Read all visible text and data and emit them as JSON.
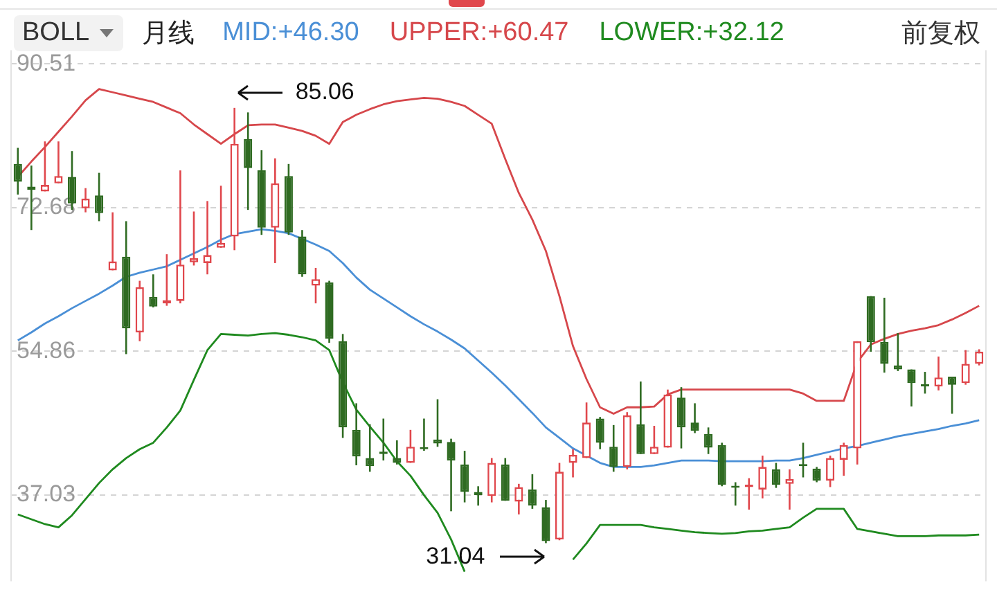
{
  "chart_data": {
    "type": "candlestick",
    "title": "BOLL",
    "subtitle": "月线",
    "categories": [
      null,
      null,
      null,
      null,
      null,
      null,
      null,
      null,
      null,
      null,
      null,
      null,
      null,
      null,
      null,
      null,
      null,
      null,
      null,
      null,
      null,
      null,
      null,
      null,
      null,
      null,
      null,
      null,
      null,
      null,
      null,
      null,
      null,
      null,
      null,
      null,
      null,
      null,
      null,
      null,
      null,
      null,
      null,
      null,
      null,
      null,
      null,
      null,
      null,
      null,
      null,
      null,
      null,
      null,
      null,
      null,
      null,
      null,
      null,
      null,
      null,
      null,
      null,
      null,
      null,
      null,
      null,
      null,
      null,
      null,
      null,
      null
    ],
    "ohlc": [
      [
        78.1,
        80.1,
        74.3,
        75.9
      ],
      [
        75.3,
        77.9,
        69.9,
        74.9
      ],
      [
        74.7,
        80.9,
        74.7,
        75.5
      ],
      [
        75.7,
        80.9,
        75.7,
        76.6
      ],
      [
        76.5,
        79.7,
        72.4,
        73.2
      ],
      [
        72.6,
        75.1,
        72.1,
        73.8
      ],
      [
        74.2,
        77.0,
        71.0,
        72.0
      ],
      [
        64.9,
        72.1,
        64.9,
        66.0
      ],
      [
        66.6,
        71.0,
        54.5,
        57.7
      ],
      [
        57.2,
        63.6,
        56.1,
        62.8
      ],
      [
        61.6,
        64.4,
        60.3,
        60.4
      ],
      [
        60.8,
        66.9,
        60.5,
        61.2
      ],
      [
        61.1,
        77.3,
        60.8,
        65.6
      ],
      [
        65.9,
        72.2,
        65.5,
        66.4
      ],
      [
        65.8,
        73.5,
        64.4,
        66.8
      ],
      [
        67.7,
        75.4,
        67.7,
        68.3
      ],
      [
        69.1,
        85.06,
        67.4,
        80.6
      ],
      [
        81.2,
        84.5,
        72.4,
        77.6
      ],
      [
        77.3,
        79.8,
        69.3,
        70.2
      ],
      [
        70.2,
        78.8,
        65.8,
        75.7
      ],
      [
        76.6,
        78.1,
        69.3,
        69.6
      ],
      [
        69.1,
        69.9,
        64.1,
        64.4
      ],
      [
        63.0,
        65.2,
        60.8,
        63.8
      ],
      [
        63.4,
        63.6,
        55.9,
        56.4
      ],
      [
        56.1,
        57.0,
        44.1,
        45.4
      ],
      [
        45.1,
        48.4,
        40.7,
        41.8
      ],
      [
        41.6,
        45.8,
        39.9,
        40.6
      ],
      [
        42.4,
        46.5,
        41.3,
        42.1
      ],
      [
        41.6,
        43.8,
        40.8,
        41.0
      ],
      [
        41.0,
        45.1,
        41.0,
        43.0
      ],
      [
        42.9,
        46.5,
        42.5,
        42.7
      ],
      [
        43.9,
        48.9,
        43.0,
        43.4
      ],
      [
        43.6,
        44.0,
        35.0,
        41.3
      ],
      [
        40.8,
        42.5,
        36.1,
        37.4
      ],
      [
        37.4,
        38.1,
        35.7,
        37.0
      ],
      [
        36.9,
        41.6,
        36.1,
        41.0
      ],
      [
        40.8,
        41.6,
        36.3,
        36.3
      ],
      [
        36.2,
        38.4,
        34.6,
        38.0
      ],
      [
        37.7,
        39.6,
        35.3,
        35.7
      ],
      [
        35.5,
        36.4,
        31.04,
        31.3
      ],
      [
        31.5,
        41.0,
        31.4,
        39.9
      ],
      [
        41.0,
        42.7,
        39.2,
        42.0
      ],
      [
        41.6,
        48.5,
        41.6,
        46.0
      ],
      [
        46.5,
        46.7,
        42.7,
        43.5
      ],
      [
        43.0,
        45.7,
        39.9,
        40.5
      ],
      [
        40.5,
        47.3,
        40.2,
        46.9
      ],
      [
        45.8,
        51.1,
        42.1,
        42.1
      ],
      [
        42.1,
        45.6,
        42.1,
        43.0
      ],
      [
        42.9,
        50.1,
        42.9,
        49.5
      ],
      [
        49.1,
        50.4,
        42.8,
        45.4
      ],
      [
        46.0,
        48.4,
        44.7,
        45.0
      ],
      [
        44.6,
        45.4,
        42.1,
        42.9
      ],
      [
        43.2,
        43.5,
        38.1,
        38.3
      ],
      [
        38.1,
        38.6,
        35.7,
        37.9
      ],
      [
        38.0,
        39.1,
        35.2,
        38.3
      ],
      [
        37.7,
        41.9,
        36.6,
        40.5
      ],
      [
        40.2,
        41.0,
        37.9,
        38.3
      ],
      [
        38.4,
        40.2,
        35.2,
        39.0
      ],
      [
        40.8,
        43.5,
        39.2,
        40.6
      ],
      [
        40.3,
        40.5,
        38.6,
        38.8
      ],
      [
        38.8,
        41.9,
        38.0,
        41.6
      ],
      [
        41.4,
        43.5,
        39.4,
        43.2
      ],
      [
        42.8,
        56.1,
        40.8,
        56.1
      ],
      [
        61.7,
        61.7,
        54.8,
        56.0
      ],
      [
        56.0,
        61.5,
        52.2,
        53.3
      ],
      [
        53.1,
        57.1,
        52.4,
        52.6
      ],
      [
        52.6,
        52.6,
        48.0,
        50.9
      ],
      [
        50.7,
        52.3,
        49.6,
        50.5
      ],
      [
        50.5,
        54.2,
        50.0,
        51.6
      ],
      [
        51.7,
        51.7,
        47.1,
        50.7
      ],
      [
        50.9,
        55.0,
        50.7,
        53.3
      ],
      [
        53.3,
        55.1,
        53.1,
        54.8
      ]
    ],
    "series": [
      {
        "name": "MID:+46.30",
        "type": "line",
        "color": "#4a8fd6",
        "values": [
          56.2,
          57.2,
          58.3,
          59.2,
          60.2,
          61.1,
          62.0,
          63.0,
          64.1,
          64.6,
          65.0,
          65.4,
          66.2,
          67.0,
          67.8,
          68.7,
          69.4,
          69.7,
          70.0,
          69.8,
          69.5,
          68.8,
          68.1,
          67.3,
          65.8,
          64.0,
          62.5,
          61.4,
          60.3,
          59.2,
          58.2,
          57.3,
          56.3,
          55.2,
          53.7,
          52.2,
          50.6,
          48.9,
          47.2,
          45.4,
          44.1,
          42.8,
          41.9,
          41.0,
          40.5,
          40.5,
          40.5,
          40.7,
          41.0,
          41.3,
          41.3,
          41.3,
          41.2,
          41.2,
          41.2,
          41.2,
          41.3,
          41.3,
          41.6,
          42.0,
          42.4,
          42.8,
          43.1,
          43.5,
          43.9,
          44.3,
          44.6,
          44.9,
          45.2,
          45.6,
          45.9,
          46.3
        ]
      },
      {
        "name": "UPPER:+60.47",
        "type": "line",
        "color": "#d6474b",
        "values": [
          76.5,
          78.4,
          80.2,
          82.1,
          84.0,
          86.0,
          87.4,
          87.0,
          86.6,
          86.2,
          85.8,
          85.1,
          84.4,
          83.0,
          81.8,
          80.6,
          81.8,
          82.9,
          83.0,
          83.0,
          82.6,
          82.2,
          81.6,
          80.6,
          83.3,
          84.2,
          84.9,
          85.5,
          85.9,
          86.1,
          86.3,
          86.2,
          85.8,
          85.3,
          84.2,
          83.1,
          78.7,
          74.5,
          71.2,
          67.3,
          61.7,
          55.5,
          51.4,
          47.9,
          47.1,
          47.9,
          47.9,
          48.0,
          49.5,
          50.1,
          50.1,
          50.1,
          50.1,
          50.1,
          50.1,
          50.1,
          50.1,
          50.1,
          49.6,
          48.7,
          48.7,
          48.7,
          53.5,
          55.7,
          56.4,
          57.0,
          57.4,
          57.7,
          58.1,
          58.8,
          59.6,
          60.5
        ]
      },
      {
        "name": "LOWER:+32.12",
        "type": "line",
        "color": "#1f8a1f",
        "values": [
          34.6,
          34.0,
          33.4,
          33.0,
          34.5,
          36.5,
          38.5,
          40.2,
          41.6,
          42.7,
          43.5,
          45.4,
          47.5,
          51.3,
          55.0,
          57.0,
          56.9,
          56.8,
          57.0,
          57.1,
          56.9,
          56.6,
          56.2,
          55.0,
          51.0,
          47.6,
          45.5,
          43.5,
          41.2,
          39.4,
          37.0,
          34.8,
          31.5,
          27.5,
          null,
          null,
          null,
          null,
          null,
          null,
          null,
          29.0,
          31.0,
          33.3,
          33.3,
          33.3,
          33.3,
          33.0,
          32.8,
          32.6,
          32.4,
          32.3,
          32.2,
          32.3,
          32.5,
          32.6,
          32.8,
          33.0,
          34.2,
          35.3,
          35.3,
          35.3,
          32.8,
          32.5,
          32.2,
          31.9,
          31.9,
          31.9,
          32.0,
          32.0,
          32.0,
          32.1
        ]
      }
    ],
    "ylim": [
      26.3,
      90.51
    ],
    "yticks": [
      90.51,
      72.68,
      54.86,
      37.03
    ],
    "grid": "y",
    "legend": "top left",
    "marker": "none",
    "annotations": [
      "前复权",
      "85.06",
      "31.04"
    ]
  }
}
